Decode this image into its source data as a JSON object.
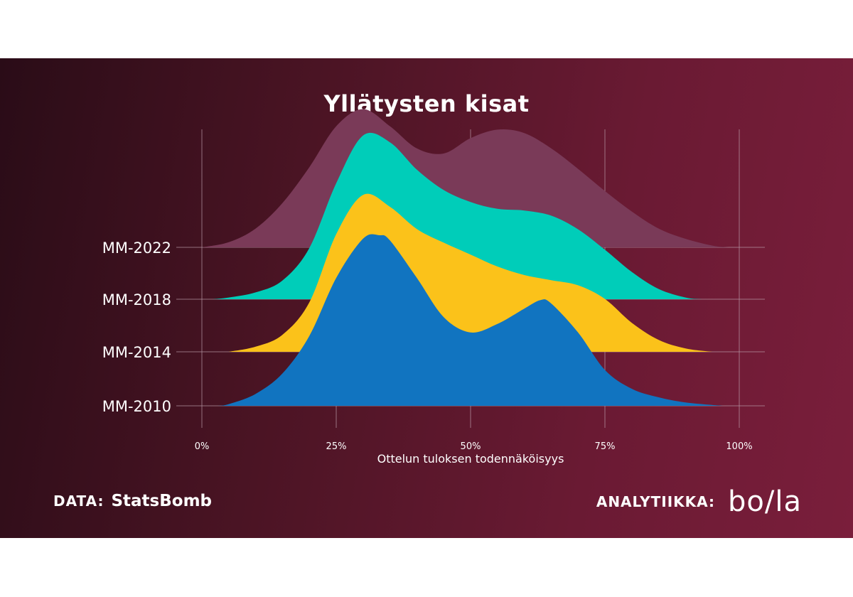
{
  "title": "Yllätysten kisat",
  "footer": {
    "data_label": "DATA:",
    "data_brand": "StatsBomb",
    "analytics_label": "ANALYTIIKKA:",
    "analytics_brand": "bo/la"
  },
  "colors": {
    "background_start": "#2a0c17",
    "background_end": "#7a1e3b",
    "grid": "#b89aa6"
  },
  "chart_data": {
    "type": "ridgeline",
    "title": "Yllätysten kisat",
    "xlabel": "Ottelun tuloksen todennäköisyys",
    "ylabel": "",
    "x_ticks": [
      "0%",
      "25%",
      "50%",
      "75%",
      "100%"
    ],
    "xlim": [
      0,
      100
    ],
    "grid": true,
    "note": "Relative density heights estimated from the figure (peak of tallest = 1.0)",
    "series": [
      {
        "name": "MM-2022",
        "color": "#7a3a58",
        "x": [
          0,
          5,
          10,
          15,
          20,
          25,
          30,
          35,
          40,
          45,
          50,
          55,
          60,
          65,
          70,
          75,
          80,
          85,
          90,
          95,
          98
        ],
        "y": [
          0.0,
          0.03,
          0.11,
          0.26,
          0.47,
          0.71,
          0.81,
          0.71,
          0.58,
          0.55,
          0.64,
          0.69,
          0.67,
          0.58,
          0.46,
          0.33,
          0.21,
          0.11,
          0.05,
          0.01,
          0.0
        ]
      },
      {
        "name": "MM-2018",
        "color": "#00cdb9",
        "x": [
          2,
          5,
          10,
          15,
          20,
          25,
          30,
          35,
          40,
          45,
          50,
          55,
          60,
          65,
          70,
          75,
          80,
          85,
          90,
          93
        ],
        "y": [
          0.0,
          0.01,
          0.04,
          0.11,
          0.3,
          0.68,
          0.96,
          0.92,
          0.76,
          0.64,
          0.57,
          0.53,
          0.52,
          0.49,
          0.41,
          0.29,
          0.16,
          0.06,
          0.01,
          0.0
        ]
      },
      {
        "name": "MM-2014",
        "color": "#fbc21a",
        "x": [
          5,
          10,
          15,
          20,
          25,
          30,
          35,
          40,
          45,
          50,
          55,
          60,
          65,
          70,
          75,
          80,
          85,
          90,
          95
        ],
        "y": [
          0.0,
          0.03,
          0.1,
          0.29,
          0.69,
          0.92,
          0.85,
          0.72,
          0.64,
          0.57,
          0.5,
          0.45,
          0.42,
          0.39,
          0.31,
          0.17,
          0.07,
          0.02,
          0.0
        ]
      },
      {
        "name": "MM-2010",
        "color": "#1174c0",
        "x": [
          3,
          5,
          10,
          15,
          20,
          25,
          30,
          33,
          35,
          40,
          45,
          50,
          55,
          60,
          63,
          65,
          70,
          75,
          80,
          85,
          90,
          97
        ],
        "y": [
          0.0,
          0.01,
          0.07,
          0.19,
          0.41,
          0.75,
          0.98,
          1.0,
          0.97,
          0.75,
          0.52,
          0.43,
          0.48,
          0.57,
          0.62,
          0.6,
          0.43,
          0.21,
          0.1,
          0.05,
          0.02,
          0.0
        ]
      }
    ]
  }
}
